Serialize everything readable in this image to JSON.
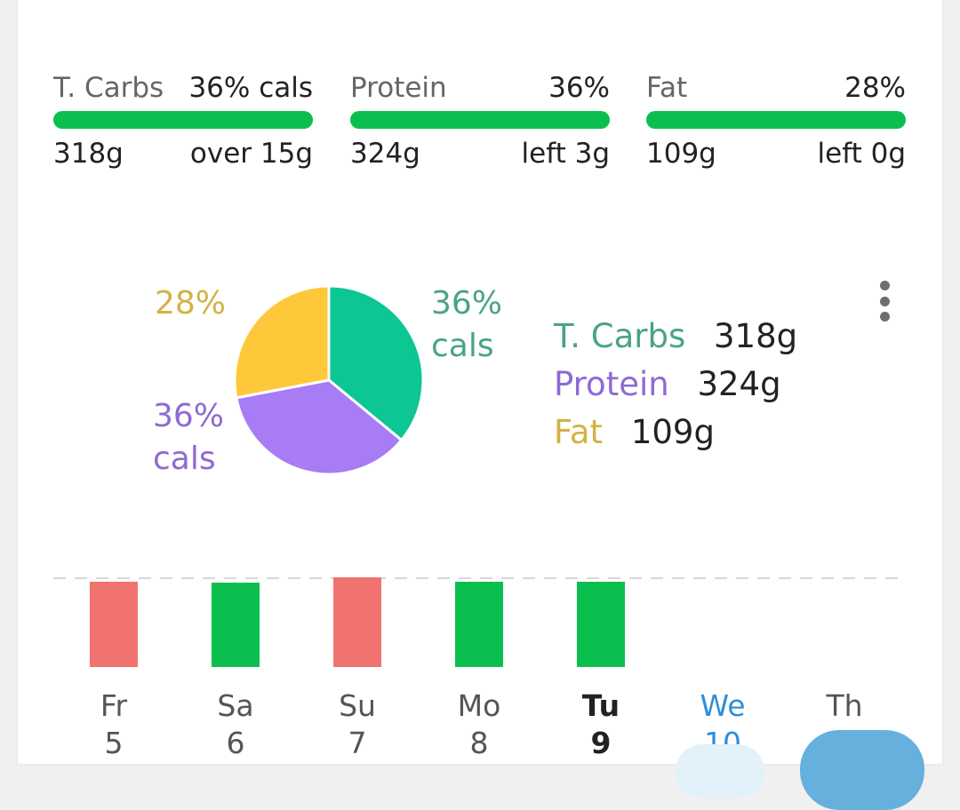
{
  "macros": [
    {
      "name": "T. Carbs",
      "pct": "36% cals",
      "grams": "318g",
      "delta": "over 15g",
      "bar_fill": 1.0
    },
    {
      "name": "Protein",
      "pct": "36%",
      "grams": "324g",
      "delta": "left 3g",
      "bar_fill": 1.0
    },
    {
      "name": "Fat",
      "pct": "28%",
      "grams": "109g",
      "delta": "left 0g",
      "bar_fill": 1.0
    }
  ],
  "colors": {
    "carbs": "#0cc693",
    "protein": "#a77cf4",
    "fat": "#fec83a",
    "bar_good": "#0bbf4f",
    "bar_over": "#f07370",
    "today": "#2f8fd9"
  },
  "pie": {
    "slices": [
      {
        "name": "T. Carbs",
        "percent": 36,
        "label_line1": "36%",
        "label_line2": "cals"
      },
      {
        "name": "Protein",
        "percent": 36,
        "label_line1": "36%",
        "label_line2": "cals"
      },
      {
        "name": "Fat",
        "percent": 28,
        "label_line1": "28%",
        "label_line2": ""
      }
    ],
    "label_colors": {
      "carbs": "#4aa387",
      "protein": "#8f69d4",
      "fat": "#d3b245"
    }
  },
  "legend": [
    {
      "name": "T. Carbs",
      "value": "318g"
    },
    {
      "name": "Protein",
      "value": "324g"
    },
    {
      "name": "Fat",
      "value": "109g"
    }
  ],
  "menu_icon": "more-vert-icon",
  "chart_data": {
    "type": "bar",
    "categories": [
      "Fr 5",
      "Sa 6",
      "Su 7",
      "Mo 8",
      "Tu 9",
      "We 10",
      "Th"
    ],
    "values": [
      0.96,
      0.95,
      1.03,
      0.96,
      0.96,
      null,
      null
    ],
    "status": [
      "over",
      "good",
      "over",
      "good",
      "good",
      "",
      ""
    ],
    "target_line": 1.0,
    "ylim": [
      0,
      1.1
    ],
    "grid": false
  },
  "days": [
    {
      "day": "Fr",
      "date": "5"
    },
    {
      "day": "Sa",
      "date": "6"
    },
    {
      "day": "Su",
      "date": "7"
    },
    {
      "day": "Mo",
      "date": "8"
    },
    {
      "day": "Tu",
      "date": "9"
    },
    {
      "day": "We",
      "date": "10"
    },
    {
      "day": "Th",
      "date": ""
    }
  ]
}
